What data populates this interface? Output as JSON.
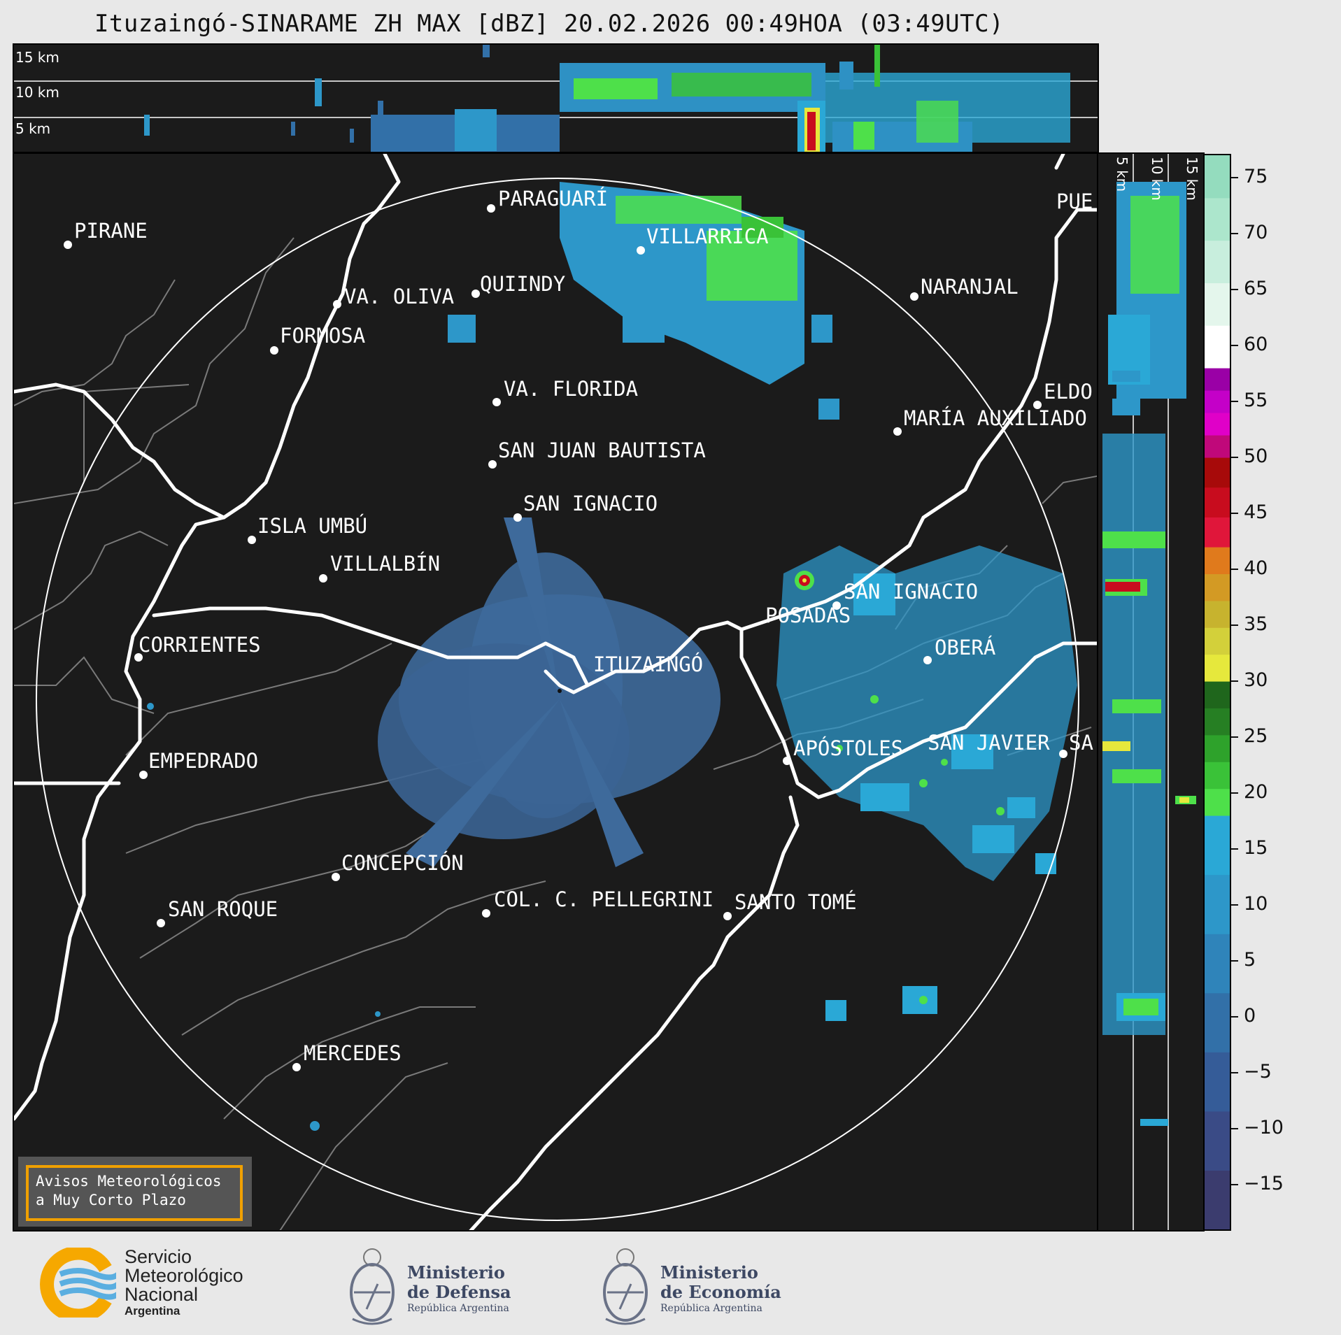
{
  "title": "Ituzaingó-SINARAME ZH MAX [dBZ] 20.02.2026 00:49HOA (03:49UTC)",
  "top_panel": {
    "levels": [
      {
        "label": "15 km"
      },
      {
        "label": "10 km"
      },
      {
        "label": "5 km"
      }
    ]
  },
  "side_panel": {
    "levels": [
      {
        "label": "5 km"
      },
      {
        "label": "10 km"
      },
      {
        "label": "15 km"
      }
    ]
  },
  "map": {
    "cities": [
      {
        "name": "PARAGUARÍ"
      },
      {
        "name": "PIRANE"
      },
      {
        "name": "VILLARRICA"
      },
      {
        "name": "QUIINDY"
      },
      {
        "name": "VA. OLIVA"
      },
      {
        "name": "NARANJAL"
      },
      {
        "name": "FORMOSA"
      },
      {
        "name": "PUE"
      },
      {
        "name": "VA. FLORIDA"
      },
      {
        "name": "ELDO"
      },
      {
        "name": "MARÍA AUXILIADO"
      },
      {
        "name": "SAN JUAN BAUTISTA"
      },
      {
        "name": "SAN IGNACIO"
      },
      {
        "name": "ISLA UMBÚ"
      },
      {
        "name": "VILLALBÍN"
      },
      {
        "name": "SAN IGNACIO"
      },
      {
        "name": "POSADAS"
      },
      {
        "name": "CORRIENTES"
      },
      {
        "name": "ITUZAINGÓ"
      },
      {
        "name": "OBERÁ"
      },
      {
        "name": "EMPEDRADO"
      },
      {
        "name": "APÓSTOLES"
      },
      {
        "name": "SAN JAVIER"
      },
      {
        "name": "SA"
      },
      {
        "name": "CONCEPCIÓN"
      },
      {
        "name": "COL. C. PELLEGRINI"
      },
      {
        "name": "SANTO TOMÉ"
      },
      {
        "name": "SAN ROQUE"
      },
      {
        "name": "MERCEDES"
      }
    ],
    "notice": {
      "line1": "Avisos Meteorológicos",
      "line2": "a Muy Corto Plazo"
    }
  },
  "colorbar": {
    "unit": "dBZ",
    "min": -19,
    "max": 77,
    "ticks": [
      "75",
      "70",
      "65",
      "60",
      "55",
      "50",
      "45",
      "40",
      "35",
      "30",
      "25",
      "20",
      "15",
      "10",
      "5",
      "0",
      "−5",
      "−10",
      "−15"
    ],
    "tick_values": [
      75,
      70,
      65,
      60,
      55,
      50,
      45,
      40,
      35,
      30,
      25,
      20,
      15,
      10,
      5,
      0,
      -5,
      -10,
      -15
    ],
    "bands": [
      {
        "from": -19,
        "to": 18,
        "colors": [
          "#3b3c6e",
          "#3a4b86",
          "#355c98",
          "#3270a8",
          "#2f84ba",
          "#2d97c9",
          "#2aa8d6"
        ]
      },
      {
        "from": 18,
        "to": 30,
        "colors": [
          "#4ee04a",
          "#3ac238",
          "#2ea22b",
          "#267f23",
          "#1f661c"
        ]
      },
      {
        "from": 30,
        "to": 42,
        "colors": [
          "#e6e83c",
          "#d3d03a",
          "#c7b32e",
          "#d39a24",
          "#e07a1c"
        ]
      },
      {
        "from": 42,
        "to": 50,
        "colors": [
          "#e0163a",
          "#c80c1e",
          "#a70a0a"
        ]
      },
      {
        "from": 50,
        "to": 58,
        "colors": [
          "#c0087a",
          "#e000c8",
          "#c400c8",
          "#9a00a6"
        ]
      },
      {
        "from": 58,
        "to": 77,
        "colors": [
          "#ffffff",
          "#e4f6ec",
          "#c8eedd",
          "#ace6cc",
          "#94dcbe"
        ]
      }
    ]
  },
  "footer": {
    "smn": {
      "line1": "Servicio",
      "line2": "Meteorológico",
      "line3": "Nacional",
      "line4": "Argentina"
    },
    "defensa": {
      "line1": "Ministerio",
      "line2": "de Defensa",
      "line3": "República Argentina"
    },
    "economia": {
      "line1": "Ministerio",
      "line2": "de Economía",
      "line3": "República Argentina"
    }
  }
}
